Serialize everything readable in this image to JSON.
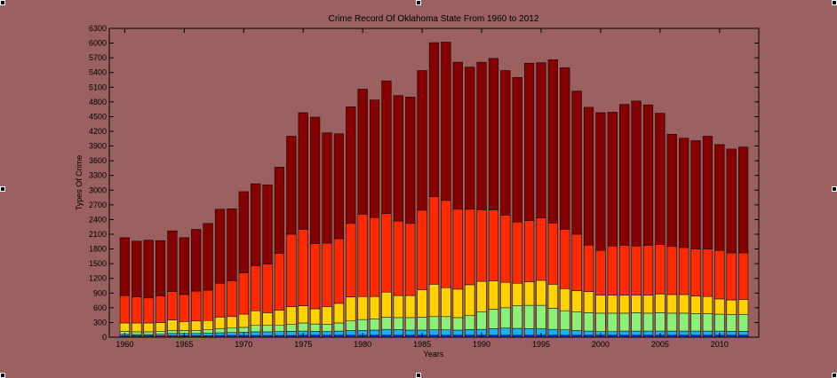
{
  "chart_data": {
    "type": "bar",
    "stacked": true,
    "title": "Crime Record Of Oklahoma State From 1960 to 2012",
    "xlabel": "Years",
    "ylabel": "Types Of Crime",
    "ylim": [
      0,
      6300
    ],
    "xlim": [
      1958.7,
      2013.3
    ],
    "yticks": [
      0,
      300,
      600,
      900,
      1200,
      1500,
      1800,
      2100,
      2400,
      2700,
      3000,
      3300,
      3600,
      3900,
      4200,
      4500,
      4800,
      5100,
      5400,
      5700,
      6000,
      6300
    ],
    "xticks": [
      1960,
      1965,
      1970,
      1975,
      1980,
      1985,
      1990,
      1995,
      2000,
      2005,
      2010
    ],
    "grid": false,
    "legend": "none",
    "categories": [
      1960,
      1961,
      1962,
      1963,
      1964,
      1965,
      1966,
      1967,
      1968,
      1969,
      1970,
      1971,
      1972,
      1973,
      1974,
      1975,
      1976,
      1977,
      1978,
      1979,
      1980,
      1981,
      1982,
      1983,
      1984,
      1985,
      1986,
      1987,
      1988,
      1989,
      1990,
      1991,
      1992,
      1993,
      1994,
      1995,
      1996,
      1997,
      1998,
      1999,
      2000,
      2001,
      2002,
      2003,
      2004,
      2005,
      2006,
      2007,
      2008,
      2009,
      2010,
      2011,
      2012
    ],
    "stack_totals": [
      [
        30,
        30,
        30,
        30,
        30,
        30,
        30,
        30,
        35,
        35,
        35,
        35,
        35,
        35,
        35,
        40,
        40,
        40,
        40,
        40,
        40,
        40,
        40,
        40,
        40,
        40,
        40,
        40,
        40,
        40,
        40,
        40,
        40,
        40,
        40,
        40,
        40,
        40,
        40,
        40,
        40,
        40,
        40,
        40,
        40,
        40,
        40,
        40,
        40,
        40,
        40,
        40,
        40
      ],
      [
        60,
        55,
        55,
        60,
        75,
        75,
        75,
        80,
        90,
        95,
        100,
        110,
        110,
        115,
        120,
        125,
        120,
        115,
        125,
        135,
        140,
        145,
        160,
        155,
        145,
        145,
        150,
        150,
        145,
        155,
        160,
        175,
        185,
        180,
        175,
        170,
        160,
        150,
        135,
        125,
        115,
        115,
        125,
        125,
        125,
        125,
        125,
        125,
        125,
        125,
        125,
        120,
        120
      ],
      [
        120,
        110,
        110,
        115,
        140,
        135,
        140,
        150,
        170,
        185,
        200,
        240,
        240,
        240,
        260,
        290,
        270,
        260,
        290,
        330,
        360,
        370,
        410,
        400,
        400,
        410,
        420,
        420,
        400,
        440,
        520,
        570,
        600,
        640,
        650,
        650,
        590,
        540,
        520,
        500,
        490,
        490,
        490,
        500,
        490,
        500,
        490,
        490,
        480,
        480,
        470,
        460,
        460
      ],
      [
        290,
        290,
        290,
        300,
        350,
        320,
        330,
        340,
        410,
        420,
        470,
        540,
        500,
        550,
        620,
        640,
        580,
        620,
        690,
        820,
        830,
        830,
        920,
        850,
        850,
        970,
        1080,
        1010,
        980,
        1070,
        1140,
        1150,
        1120,
        1100,
        1130,
        1160,
        1080,
        990,
        950,
        930,
        860,
        860,
        860,
        860,
        860,
        880,
        870,
        870,
        840,
        830,
        780,
        760,
        770
      ],
      [
        850,
        820,
        800,
        840,
        930,
        870,
        940,
        960,
        1100,
        1150,
        1310,
        1460,
        1490,
        1710,
        2100,
        2200,
        1910,
        1920,
        2010,
        2320,
        2510,
        2440,
        2520,
        2370,
        2320,
        2590,
        2870,
        2790,
        2610,
        2610,
        2600,
        2600,
        2490,
        2350,
        2380,
        2430,
        2330,
        2200,
        2100,
        1880,
        1770,
        1860,
        1870,
        1860,
        1870,
        1890,
        1850,
        1830,
        1800,
        1800,
        1770,
        1720,
        1720
      ],
      [
        2030,
        1960,
        1980,
        1970,
        2170,
        2030,
        2200,
        2320,
        2610,
        2620,
        2970,
        3130,
        3110,
        3470,
        4100,
        4580,
        4490,
        4170,
        4150,
        4700,
        5060,
        4840,
        5230,
        4930,
        4900,
        5440,
        6010,
        6020,
        5610,
        5510,
        5610,
        5690,
        5440,
        5300,
        5590,
        5600,
        5660,
        5500,
        5020,
        4690,
        4580,
        4590,
        4750,
        4820,
        4740,
        4570,
        4140,
        4060,
        4010,
        4100,
        3930,
        3840,
        3880
      ]
    ],
    "series_colors": [
      "#0a2ad8",
      "#14b4f0",
      "#8cf078",
      "#ffd200",
      "#ff2a00",
      "#850000"
    ]
  }
}
